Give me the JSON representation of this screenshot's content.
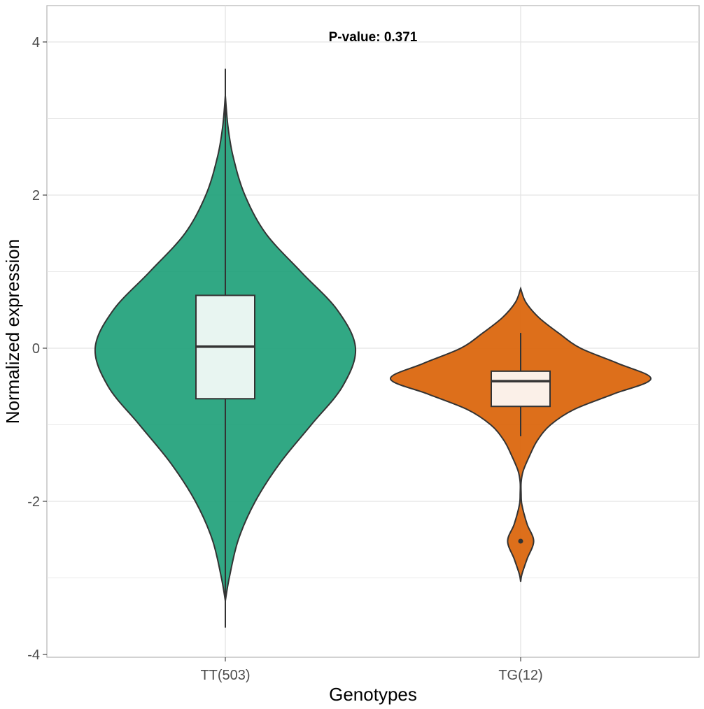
{
  "chart_data": {
    "type": "violin",
    "title": "",
    "annotation": "P-value: 0.371",
    "xlabel": "Genotypes",
    "ylabel": "Normalized expression",
    "ylim": [
      -4.0,
      4.4
    ],
    "yticks": [
      -4,
      -2,
      0,
      2,
      4
    ],
    "ytick_labels": [
      "-4",
      "-2",
      "0",
      "2",
      "4"
    ],
    "grid": true,
    "legend": "none",
    "categories": [
      "TT(503)",
      "TG(12)"
    ],
    "series": [
      {
        "category": "TT(503)",
        "color": "#1b9e77",
        "box_fill": "#e8f5f1",
        "box": {
          "q1": -0.66,
          "median": 0.02,
          "q3": 0.69,
          "whisker_low": -3.65,
          "whisker_high": 3.65
        },
        "outliers": [],
        "density": [
          [
            3.3,
            0.0
          ],
          [
            2.9,
            0.02
          ],
          [
            2.5,
            0.06
          ],
          [
            2.0,
            0.15
          ],
          [
            1.5,
            0.31
          ],
          [
            1.0,
            0.58
          ],
          [
            0.5,
            0.86
          ],
          [
            0.0,
            1.0
          ],
          [
            -0.5,
            0.9
          ],
          [
            -1.0,
            0.66
          ],
          [
            -1.5,
            0.42
          ],
          [
            -2.0,
            0.23
          ],
          [
            -2.5,
            0.1
          ],
          [
            -3.0,
            0.03
          ],
          [
            -3.3,
            0.0
          ]
        ]
      },
      {
        "category": "TG(12)",
        "color": "#d95f02",
        "box_fill": "#fbf0e8",
        "box": {
          "q1": -0.76,
          "median": -0.43,
          "q3": -0.3,
          "whisker_low": -1.15,
          "whisker_high": 0.2
        },
        "outliers": [
          -2.52
        ],
        "density": [
          [
            0.78,
            0.0
          ],
          [
            0.6,
            0.04
          ],
          [
            0.4,
            0.14
          ],
          [
            0.2,
            0.29
          ],
          [
            0.0,
            0.46
          ],
          [
            -0.2,
            0.75
          ],
          [
            -0.4,
            1.0
          ],
          [
            -0.6,
            0.71
          ],
          [
            -0.8,
            0.41
          ],
          [
            -1.0,
            0.23
          ],
          [
            -1.2,
            0.13
          ],
          [
            -1.4,
            0.07
          ],
          [
            -1.6,
            0.02
          ],
          [
            -1.75,
            0.004
          ],
          [
            -1.9,
            0.004
          ],
          [
            -2.05,
            0.01
          ],
          [
            -2.3,
            0.05
          ],
          [
            -2.52,
            0.1
          ],
          [
            -2.75,
            0.05
          ],
          [
            -2.95,
            0.01
          ],
          [
            -3.05,
            0.0
          ]
        ]
      }
    ]
  }
}
